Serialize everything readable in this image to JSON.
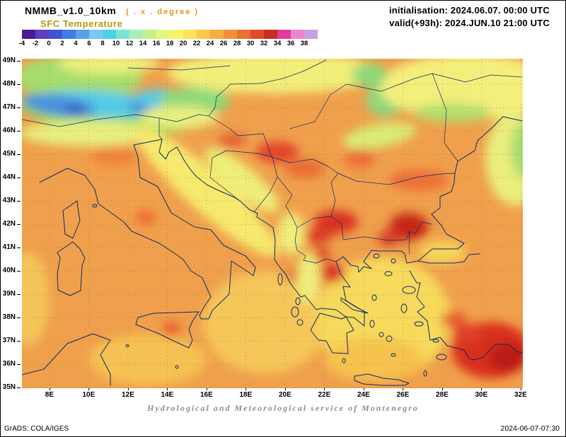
{
  "header": {
    "model": "NMMB_v1.0_10km",
    "grid_note": "( . x . degree )",
    "variable": "SFC Temperature",
    "initialisation": "initialisation: 2024.06.07. 00:00 UTC",
    "valid": "valid(+93h): 2024.JUN.10 21:00 UTC"
  },
  "colors": {
    "note_orange": "#e39517",
    "variable_olive": "#b19c10",
    "footer_gray": "#8f8f8f",
    "text": "#000000"
  },
  "colorbar": {
    "tick_labels": [
      "-4",
      "-2",
      "0",
      "2",
      "4",
      "6",
      "8",
      "10",
      "12",
      "14",
      "16",
      "18",
      "20",
      "22",
      "24",
      "26",
      "28",
      "30",
      "32",
      "34",
      "36",
      "38"
    ],
    "colors": [
      "#4a1a94",
      "#5d3fc0",
      "#3c55d6",
      "#3f7de4",
      "#55a2ec",
      "#7cc6f2",
      "#46d2e8",
      "#7ce4d4",
      "#abeeb4",
      "#c6f08a",
      "#e4f67e",
      "#f8f468",
      "#fbe257",
      "#fac94a",
      "#f7ad40",
      "#f29038",
      "#ea7031",
      "#e04b28",
      "#c92d1c",
      "#e03a9e",
      "#ea86cc",
      "#c9a0e4"
    ]
  },
  "axes": {
    "lat_labels": [
      "49N",
      "48N",
      "47N",
      "46N",
      "45N",
      "44N",
      "43N",
      "42N",
      "41N",
      "40N",
      "39N",
      "38N",
      "37N",
      "36N",
      "35N"
    ],
    "lon_labels": [
      "8E",
      "10E",
      "12E",
      "14E",
      "16E",
      "18E",
      "20E",
      "22E",
      "24E",
      "26E",
      "28E",
      "30E",
      "32E"
    ]
  },
  "footer": {
    "service": "Hydrological and Meteorological service of Montenegro",
    "credit": "GrADS: COLA/IGES",
    "generated": "2024-06-07-07:30"
  },
  "chart_data": {
    "type": "heatmap",
    "title": "SFC Temperature",
    "units": "degree",
    "scale_min": -4,
    "scale_max": 38,
    "scale_step": 2,
    "lon_range": [
      6.6,
      32.1
    ],
    "lat_range": [
      35.0,
      49.1
    ],
    "base_color": "#f0a04c",
    "grid_color": "#6b6b2a",
    "coast_color": "#0d2b66",
    "feature_fields": [
      "lon",
      "lat",
      "rx_deg",
      "ry_deg",
      "rot_deg",
      "color"
    ],
    "features": [
      [
        9.5,
        48.3,
        3.2,
        1.0,
        0,
        "#a6dd6d"
      ],
      [
        11.0,
        48.9,
        2.6,
        0.45,
        0,
        "#eef07c"
      ],
      [
        17.8,
        48.9,
        1.7,
        0.5,
        0,
        "#b3e070"
      ],
      [
        11.0,
        46.8,
        4.6,
        0.85,
        6,
        "#90d957"
      ],
      [
        10.6,
        47.15,
        3.3,
        0.55,
        4,
        "#55cbe8"
      ],
      [
        8.5,
        47.1,
        1.9,
        0.45,
        8,
        "#4a90e0"
      ],
      [
        9.3,
        46.9,
        0.55,
        0.2,
        0,
        "#3358c8"
      ],
      [
        12.7,
        47.0,
        0.6,
        0.22,
        0,
        "#3f6fd0"
      ],
      [
        13.6,
        47.4,
        1.3,
        0.4,
        0,
        "#55cbe8"
      ],
      [
        15.4,
        47.3,
        1.8,
        0.6,
        0,
        "#8fd87a"
      ],
      [
        10.0,
        45.9,
        3.5,
        0.55,
        0,
        "#e8ef7f"
      ],
      [
        14.6,
        46.6,
        2.0,
        0.5,
        0,
        "#e8ef7f"
      ],
      [
        13.6,
        45.45,
        0.5,
        0.3,
        0,
        "#7fd9c0"
      ],
      [
        19.5,
        48.5,
        5.5,
        0.9,
        0,
        "#f2ee7a"
      ],
      [
        25.2,
        47.4,
        1.1,
        0.75,
        -20,
        "#8fd87a"
      ],
      [
        29.8,
        48.6,
        2.2,
        0.5,
        0,
        "#a5dc6e"
      ],
      [
        29.3,
        47.9,
        4.5,
        1.4,
        0,
        "#f4ef7c"
      ],
      [
        24.8,
        45.8,
        1.9,
        0.5,
        -10,
        "#d9ec75"
      ],
      [
        17.8,
        43.9,
        2.4,
        0.6,
        40,
        "#eeee78"
      ],
      [
        16.0,
        43.4,
        4.8,
        0.85,
        42,
        "#f6e96e"
      ],
      [
        19.0,
        37.8,
        3.2,
        2.2,
        0,
        "#f5c65a"
      ],
      [
        25.0,
        38.0,
        3.4,
        2.6,
        0,
        "#f7d95c"
      ],
      [
        13.0,
        36.2,
        3.0,
        1.1,
        0,
        "#f5c152"
      ],
      [
        6.9,
        38.8,
        1.1,
        2.0,
        0,
        "#f3c45a"
      ],
      [
        31.7,
        44.8,
        1.5,
        2.0,
        0,
        "#e9ee7d"
      ],
      [
        32.2,
        45.2,
        0.7,
        1.2,
        0,
        "#a8dc6e"
      ],
      [
        28.5,
        46.8,
        2.0,
        0.4,
        0,
        "#b3e070"
      ],
      [
        24.3,
        48.4,
        0.9,
        0.5,
        0,
        "#8fd87a"
      ],
      [
        19.6,
        45.1,
        1.1,
        0.45,
        0,
        "#e2442a"
      ],
      [
        17.3,
        45.6,
        0.7,
        0.25,
        0,
        "#e25535"
      ],
      [
        21.0,
        44.4,
        1.0,
        0.4,
        0,
        "#ea6a35"
      ],
      [
        23.8,
        44.8,
        0.8,
        0.4,
        0,
        "#ec6e38"
      ],
      [
        22.6,
        42.1,
        1.1,
        0.5,
        0,
        "#d93020"
      ],
      [
        21.7,
        41.5,
        0.7,
        0.35,
        0,
        "#dd3d26"
      ],
      [
        26.3,
        41.9,
        1.0,
        0.6,
        0,
        "#c62718"
      ],
      [
        25.3,
        41.4,
        0.6,
        0.35,
        0,
        "#d8402a"
      ],
      [
        22.4,
        39.9,
        0.65,
        0.4,
        0,
        "#d93223"
      ],
      [
        21.8,
        40.7,
        0.5,
        0.3,
        0,
        "#dd4428"
      ],
      [
        26.8,
        43.9,
        1.5,
        0.45,
        0,
        "#ec6e38"
      ],
      [
        30.5,
        36.6,
        2.0,
        1.2,
        0,
        "#d92f1f"
      ],
      [
        31.3,
        36.3,
        0.9,
        0.6,
        0,
        "#b81f12"
      ],
      [
        29.3,
        37.3,
        0.7,
        0.45,
        0,
        "#dd3d26"
      ],
      [
        28.6,
        37.9,
        0.65,
        0.35,
        0,
        "#e65c30"
      ],
      [
        20.4,
        39.8,
        0.35,
        0.25,
        0,
        "#dd4428"
      ],
      [
        21.2,
        39.7,
        0.6,
        1.1,
        0,
        "#f0ee7c"
      ],
      [
        12.9,
        42.3,
        0.5,
        0.3,
        0,
        "#ea6a35"
      ],
      [
        11.3,
        44.9,
        1.2,
        0.35,
        0,
        "#ef8038"
      ],
      [
        20.3,
        41.6,
        0.7,
        0.9,
        0,
        "#f0ee7c"
      ],
      [
        28.0,
        40.8,
        1.2,
        0.5,
        0,
        "#f6d45c"
      ],
      [
        24.5,
        36.2,
        2.5,
        0.9,
        0,
        "#f6c24e"
      ],
      [
        14.2,
        37.5,
        0.5,
        0.3,
        0,
        "#e65c30"
      ]
    ]
  }
}
